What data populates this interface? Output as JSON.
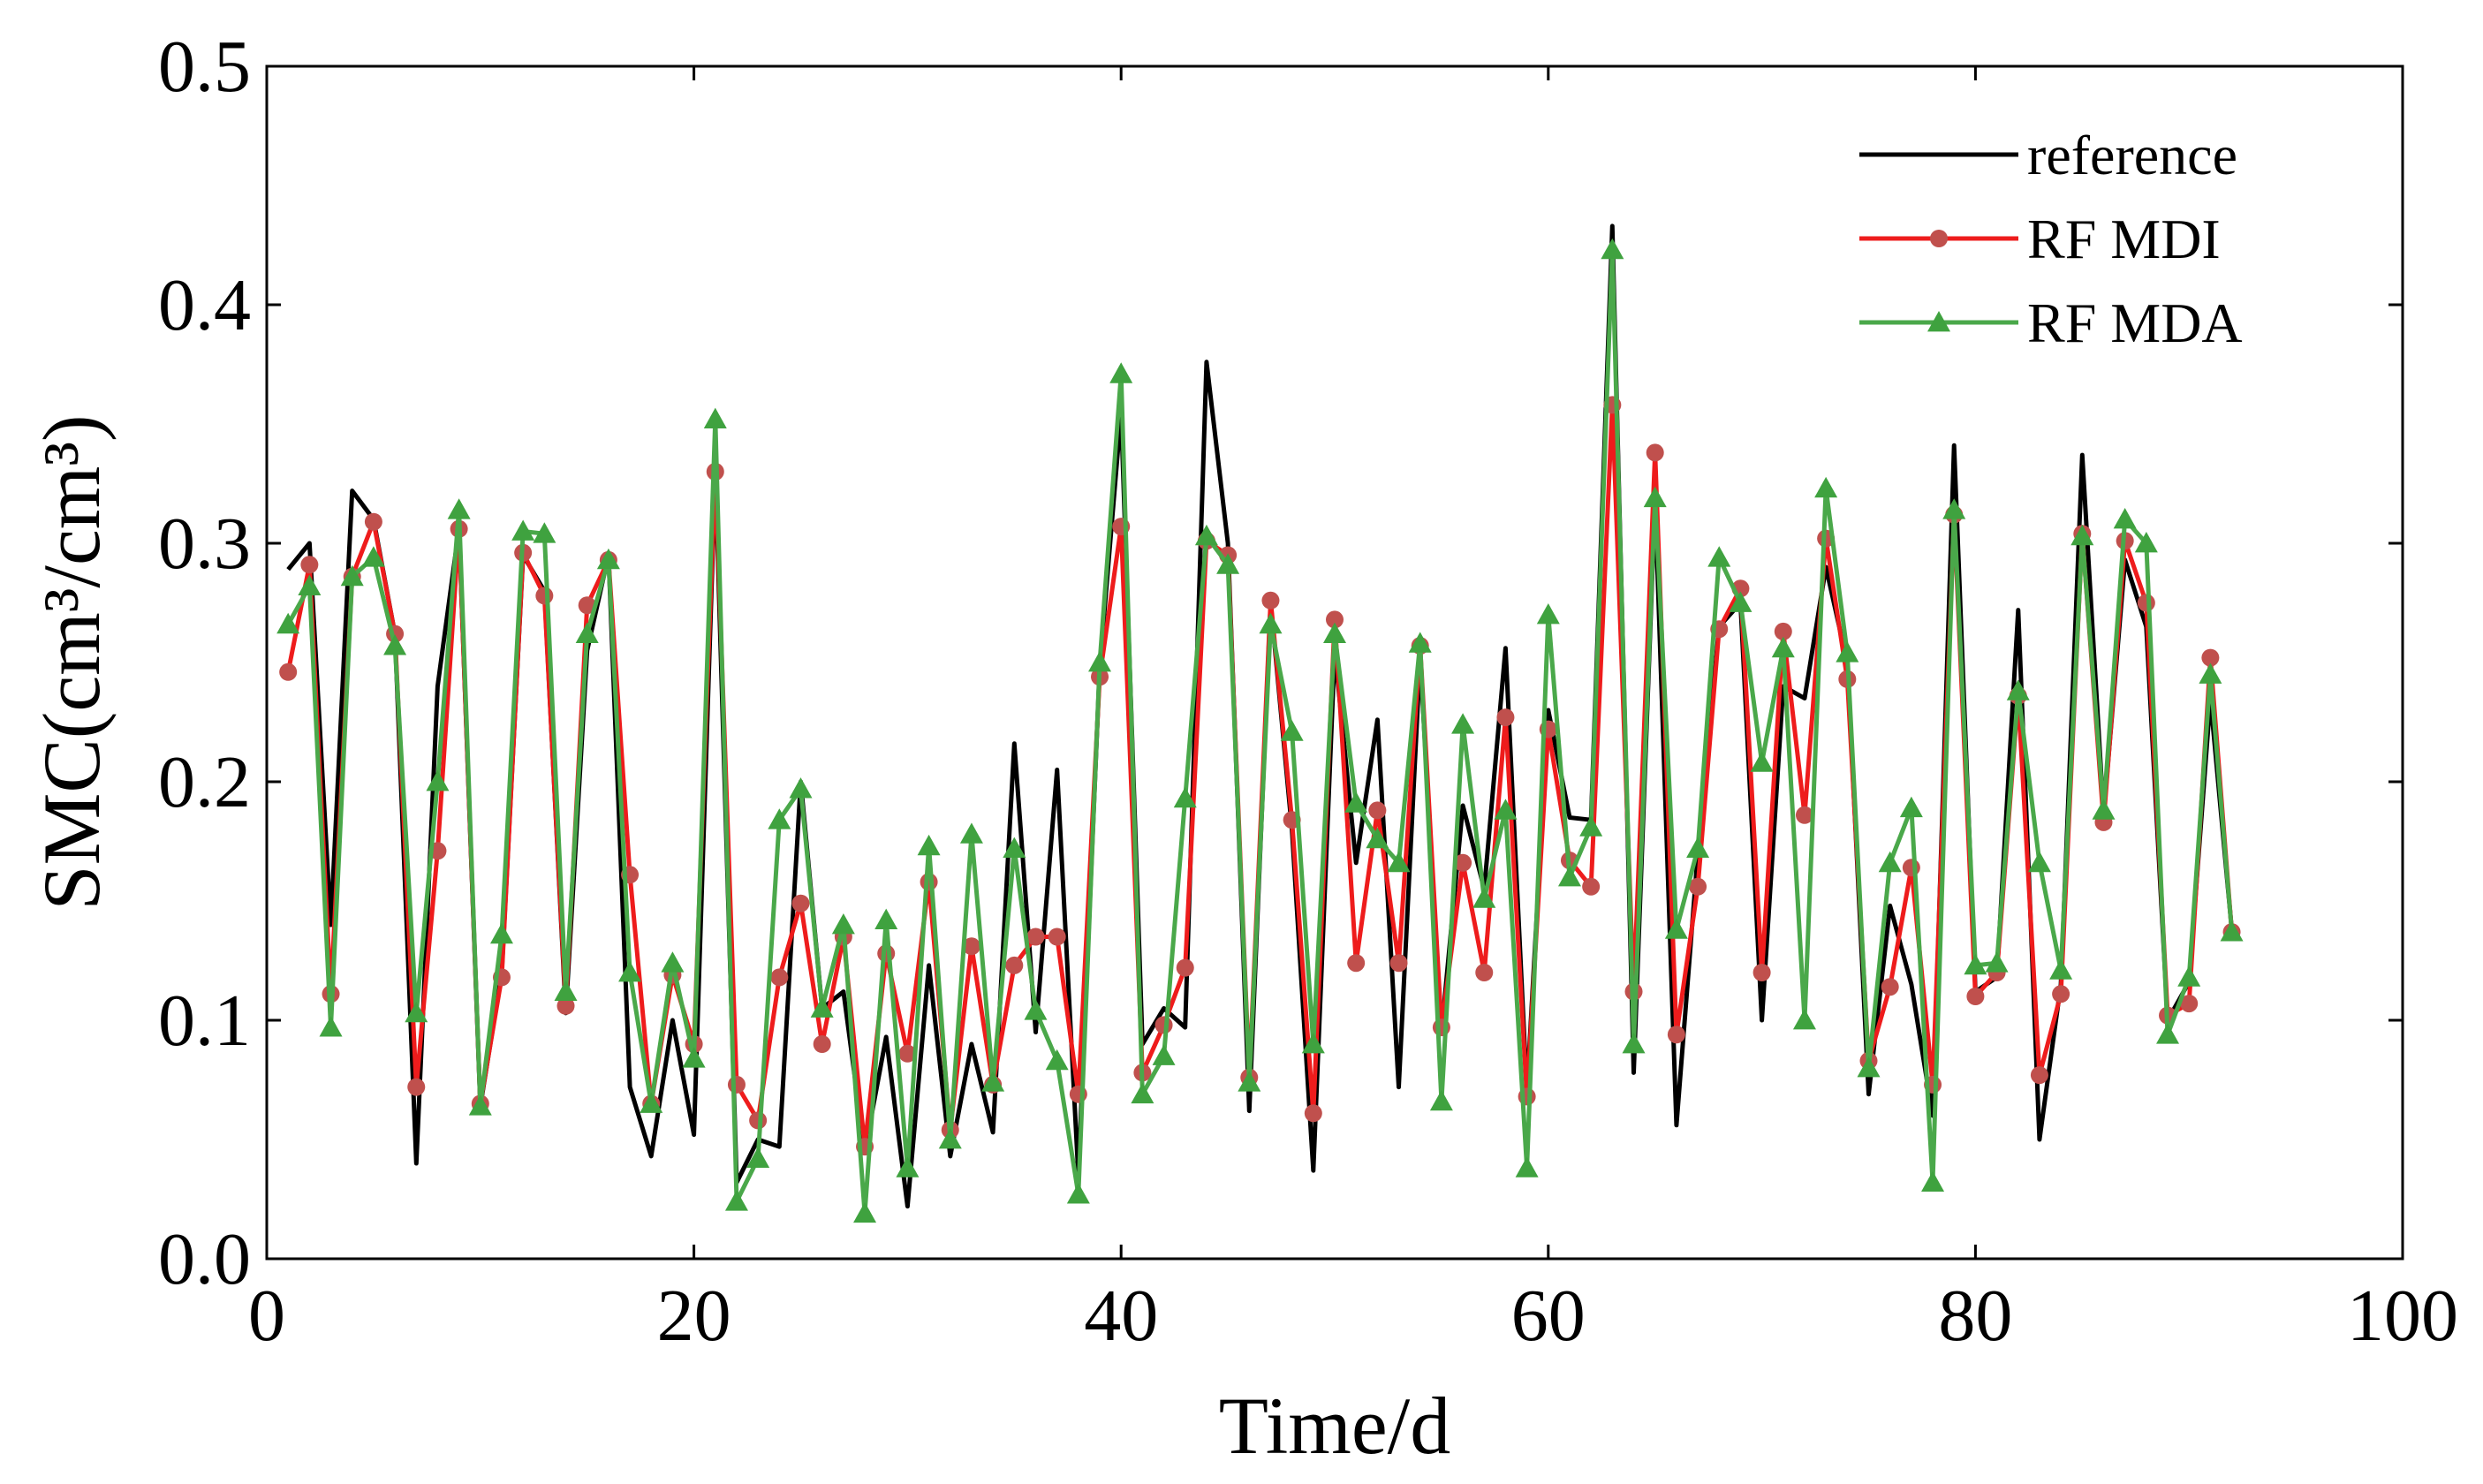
{
  "chart_data": {
    "type": "line",
    "title": "",
    "xlabel": "Time/d",
    "ylabel": "SMC(cm³/cm³)",
    "xlim": [
      0,
      100
    ],
    "ylim": [
      0,
      0.5
    ],
    "xticks": [
      0,
      20,
      40,
      60,
      80,
      100
    ],
    "yticks": [
      0.0,
      0.1,
      0.2,
      0.3,
      0.4,
      0.5
    ],
    "xtick_labels": [
      "0",
      "20",
      "40",
      "60",
      "80",
      "100"
    ],
    "ytick_labels": [
      "0.0",
      "0.1",
      "0.2",
      "0.3",
      "0.4",
      "0.5"
    ],
    "legend_position": "top-right",
    "x": [
      1,
      2,
      3,
      4,
      5,
      6,
      7,
      8,
      9,
      10,
      11,
      12,
      13,
      14,
      15,
      16,
      17,
      18,
      19,
      20,
      21,
      22,
      23,
      24,
      25,
      26,
      27,
      28,
      29,
      30,
      31,
      32,
      33,
      34,
      35,
      36,
      37,
      38,
      39,
      40,
      41,
      42,
      43,
      44,
      45,
      46,
      47,
      48,
      49,
      50,
      51,
      52,
      53,
      54,
      55,
      56,
      57,
      58,
      59,
      60,
      61,
      62,
      63,
      64,
      65,
      66,
      67,
      68,
      69,
      70,
      71,
      72,
      73,
      74,
      75,
      76,
      77,
      78,
      79,
      80,
      81,
      82,
      83,
      84,
      85,
      86,
      87,
      88,
      89,
      90,
      91,
      92
    ],
    "series": [
      {
        "name": "reference",
        "color": "#000000",
        "marker": "none",
        "values": [
          0.289,
          0.3,
          0.14,
          0.322,
          0.31,
          0.262,
          0.04,
          0.24,
          0.306,
          0.064,
          0.12,
          0.295,
          0.28,
          0.103,
          0.255,
          0.295,
          0.072,
          0.043,
          0.1,
          0.052,
          0.33,
          0.032,
          0.05,
          0.047,
          0.2,
          0.105,
          0.112,
          0.045,
          0.093,
          0.022,
          0.123,
          0.043,
          0.09,
          0.053,
          0.216,
          0.095,
          0.205,
          0.035,
          0.248,
          0.355,
          0.09,
          0.105,
          0.097,
          0.376,
          0.3,
          0.062,
          0.275,
          0.18,
          0.037,
          0.255,
          0.166,
          0.226,
          0.072,
          0.252,
          0.095,
          0.19,
          0.155,
          0.256,
          0.07,
          0.23,
          0.185,
          0.184,
          0.433,
          0.078,
          0.318,
          0.056,
          0.17,
          0.265,
          0.275,
          0.1,
          0.24,
          0.235,
          0.29,
          0.25,
          0.069,
          0.148,
          0.115,
          0.06,
          0.341,
          0.112,
          0.118,
          0.272,
          0.05,
          0.115,
          0.337,
          0.186,
          0.293,
          0.265,
          0.1,
          0.116,
          0.235,
          0.138
        ]
      },
      {
        "name": "RF MDI",
        "color": "#ee1c1c",
        "marker": "circle",
        "marker_color": "#c0504d",
        "values": [
          0.246,
          0.291,
          0.111,
          0.286,
          0.309,
          0.262,
          0.072,
          0.171,
          0.306,
          0.065,
          0.118,
          0.296,
          0.278,
          0.106,
          0.274,
          0.293,
          0.161,
          0.065,
          0.119,
          0.09,
          0.33,
          0.073,
          0.058,
          0.118,
          0.149,
          0.09,
          0.135,
          0.047,
          0.128,
          0.086,
          0.158,
          0.054,
          0.131,
          0.073,
          0.123,
          0.135,
          0.135,
          0.069,
          0.244,
          0.307,
          0.078,
          0.098,
          0.122,
          0.301,
          0.295,
          0.076,
          0.276,
          0.184,
          0.061,
          0.268,
          0.124,
          0.188,
          0.124,
          0.257,
          0.097,
          0.166,
          0.12,
          0.227,
          0.068,
          0.222,
          0.167,
          0.156,
          0.358,
          0.112,
          0.338,
          0.094,
          0.156,
          0.264,
          0.281,
          0.12,
          0.263,
          0.186,
          0.302,
          0.243,
          0.083,
          0.114,
          0.164,
          0.073,
          0.312,
          0.11,
          0.12,
          0.236,
          0.077,
          0.111,
          0.304,
          0.183,
          0.301,
          0.275,
          0.102,
          0.107,
          0.252,
          0.137
        ]
      },
      {
        "name": "RF MDA",
        "color": "#4aa84a",
        "marker": "triangle",
        "marker_color": "#3fa23f",
        "values": [
          0.266,
          0.282,
          0.097,
          0.286,
          0.294,
          0.257,
          0.103,
          0.2,
          0.314,
          0.064,
          0.136,
          0.305,
          0.304,
          0.112,
          0.262,
          0.293,
          0.12,
          0.065,
          0.124,
          0.084,
          0.352,
          0.024,
          0.042,
          0.184,
          0.197,
          0.105,
          0.14,
          0.019,
          0.142,
          0.038,
          0.173,
          0.05,
          0.178,
          0.074,
          0.172,
          0.104,
          0.083,
          0.027,
          0.25,
          0.371,
          0.069,
          0.085,
          0.193,
          0.303,
          0.291,
          0.074,
          0.266,
          0.221,
          0.09,
          0.262,
          0.191,
          0.176,
          0.166,
          0.258,
          0.066,
          0.224,
          0.151,
          0.188,
          0.038,
          0.27,
          0.16,
          0.181,
          0.423,
          0.09,
          0.319,
          0.138,
          0.172,
          0.294,
          0.275,
          0.208,
          0.256,
          0.1,
          0.323,
          0.254,
          0.08,
          0.166,
          0.189,
          0.032,
          0.314,
          0.123,
          0.124,
          0.238,
          0.166,
          0.121,
          0.303,
          0.188,
          0.31,
          0.3,
          0.094,
          0.118,
          0.245,
          0.137
        ]
      }
    ]
  }
}
